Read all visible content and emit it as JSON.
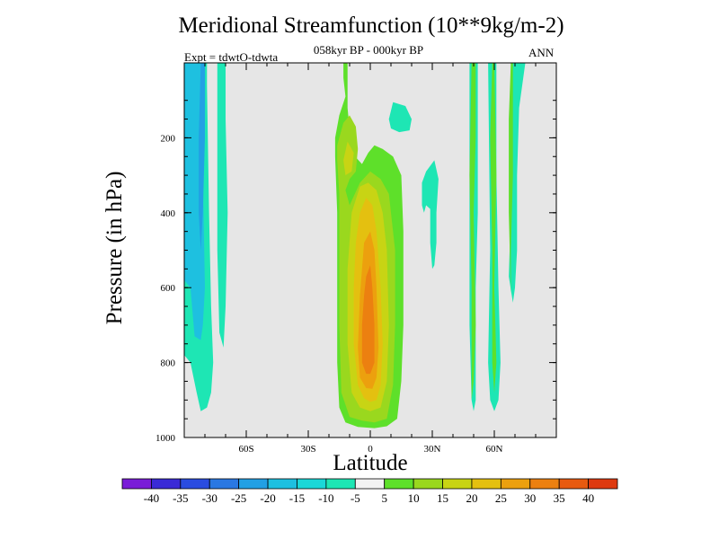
{
  "chart_data": {
    "type": "heatmap",
    "title": "Meridional Streamfunction (10**9kg/m-2)",
    "subtitle": "058kyr BP - 000kyr BP",
    "left_label": "Expt = tdwtO-tdwta",
    "right_label": "ANN",
    "xlabel": "Latitude",
    "ylabel": "Pressure (in hPa)",
    "xlim": [
      -90,
      90
    ],
    "ylim": [
      1000,
      0
    ],
    "x_ticks": [
      {
        "value": -60,
        "label": "60S"
      },
      {
        "value": -30,
        "label": "30S"
      },
      {
        "value": 0,
        "label": "0"
      },
      {
        "value": 30,
        "label": "30N"
      },
      {
        "value": 60,
        "label": "60N"
      }
    ],
    "y_ticks": [
      {
        "value": 200,
        "label": "200"
      },
      {
        "value": 400,
        "label": "400"
      },
      {
        "value": 600,
        "label": "600"
      },
      {
        "value": 800,
        "label": "800"
      },
      {
        "value": 1000,
        "label": "1000"
      }
    ],
    "background_color": "#e6e6e6",
    "colorbar": {
      "labels": [
        "-40",
        "-35",
        "-30",
        "-25",
        "-20",
        "-15",
        "-10",
        "-5",
        "5",
        "10",
        "15",
        "20",
        "25",
        "30",
        "35",
        "40"
      ],
      "colors": [
        "#7a1cd8",
        "#3a2ad6",
        "#2a4ce0",
        "#2a78e2",
        "#22a0e4",
        "#1ec0e0",
        "#1ad8d8",
        "#1ee6b4",
        "#f2f2f2",
        "#5ee02a",
        "#9ad81e",
        "#c8d414",
        "#e4c010",
        "#eca00e",
        "#ec8010",
        "#e85a10",
        "#de3a10"
      ]
    },
    "contours": [
      {
        "level": -5,
        "color": "#1ee6b4",
        "polygons": [
          [
            [
              -90,
              0
            ],
            [
              -79,
              0
            ],
            [
              -79,
              60
            ],
            [
              -78,
              400
            ],
            [
              -77,
              650
            ],
            [
              -76,
              800
            ],
            [
              -77,
              880
            ],
            [
              -79,
              920
            ],
            [
              -82,
              930
            ],
            [
              -84,
              880
            ],
            [
              -87,
              800
            ],
            [
              -90,
              780
            ]
          ],
          [
            [
              -74,
              0
            ],
            [
              -70,
              0
            ],
            [
              -70,
              150
            ],
            [
              -69,
              400
            ],
            [
              -70,
              650
            ],
            [
              -71,
              760
            ],
            [
              -73,
              720
            ],
            [
              -74,
              500
            ],
            [
              -74,
              200
            ]
          ],
          [
            [
              9,
              150
            ],
            [
              11,
              105
            ],
            [
              17,
              115
            ],
            [
              20,
              150
            ],
            [
              19,
              180
            ],
            [
              14,
              185
            ],
            [
              10,
              175
            ]
          ],
          [
            [
              25,
              320
            ],
            [
              27,
              290
            ],
            [
              31,
              260
            ],
            [
              33,
              310
            ],
            [
              32,
              400
            ],
            [
              32,
              480
            ],
            [
              31,
              540
            ],
            [
              30,
              550
            ],
            [
              29,
              480
            ],
            [
              29,
              390
            ],
            [
              27,
              380
            ],
            [
              26,
              400
            ],
            [
              25,
              380
            ]
          ],
          [
            [
              48,
              0
            ],
            [
              52,
              0
            ],
            [
              52,
              400
            ],
            [
              51,
              600
            ],
            [
              51,
              800
            ],
            [
              51,
              900
            ],
            [
              50,
              930
            ],
            [
              49,
              900
            ],
            [
              48,
              700
            ],
            [
              48,
              400
            ]
          ],
          [
            [
              57,
              0
            ],
            [
              61,
              0
            ],
            [
              61,
              300
            ],
            [
              62,
              600
            ],
            [
              63,
              800
            ],
            [
              62,
              900
            ],
            [
              60,
              930
            ],
            [
              58,
              900
            ],
            [
              57,
              800
            ],
            [
              58,
              500
            ]
          ],
          [
            [
              68,
              0
            ],
            [
              75,
              0
            ],
            [
              72,
              120
            ],
            [
              71,
              300
            ],
            [
              71,
              500
            ],
            [
              70,
              600
            ],
            [
              69,
              640
            ],
            [
              67,
              570
            ],
            [
              68,
              400
            ],
            [
              68,
              200
            ]
          ]
        ]
      },
      {
        "level": -10,
        "color": "#1ec0e0",
        "polygons": [
          [
            [
              -90,
              0
            ],
            [
              -81,
              0
            ],
            [
              -81,
              300
            ],
            [
              -80,
              600
            ],
            [
              -81,
              700
            ],
            [
              -82,
              740
            ],
            [
              -85,
              730
            ],
            [
              -87,
              600
            ],
            [
              -90,
              580
            ]
          ]
        ]
      },
      {
        "level": -15,
        "color": "#22a0e4",
        "polygons": [
          [
            [
              -82,
              0
            ],
            [
              -80,
              0
            ],
            [
              -80,
              200
            ],
            [
              -81,
              400
            ],
            [
              -82,
              500
            ],
            [
              -83,
              400
            ],
            [
              -83,
              200
            ]
          ]
        ]
      },
      {
        "level": 5,
        "color": "#5ee02a",
        "polygons": [
          [
            [
              -13,
              0
            ],
            [
              -11,
              0
            ],
            [
              -11,
              120
            ],
            [
              -9,
              240
            ],
            [
              -4,
              270
            ],
            [
              -1,
              240
            ],
            [
              2,
              220
            ],
            [
              6,
              230
            ],
            [
              11,
              250
            ],
            [
              15,
              300
            ],
            [
              16,
              450
            ],
            [
              16,
              700
            ],
            [
              15,
              850
            ],
            [
              13,
              950
            ],
            [
              8,
              970
            ],
            [
              2,
              975
            ],
            [
              -6,
              972
            ],
            [
              -12,
              960
            ],
            [
              -15,
              920
            ],
            [
              -16,
              800
            ],
            [
              -16,
              600
            ],
            [
              -16,
              400
            ],
            [
              -17,
              250
            ],
            [
              -17,
              200
            ],
            [
              -15,
              140
            ],
            [
              -12,
              90
            ],
            [
              -13,
              40
            ]
          ],
          [
            [
              49,
              0
            ],
            [
              51,
              0
            ],
            [
              51,
              200
            ],
            [
              50,
              400
            ],
            [
              51,
              700
            ],
            [
              50,
              850
            ],
            [
              49,
              900
            ],
            [
              49,
              600
            ],
            [
              48,
              300
            ]
          ],
          [
            [
              59,
              0
            ],
            [
              60,
              0
            ],
            [
              61,
              300
            ],
            [
              60,
              600
            ],
            [
              61,
              800
            ],
            [
              60,
              880
            ],
            [
              59,
              800
            ],
            [
              59,
              500
            ],
            [
              58,
              200
            ]
          ],
          [
            [
              68,
              0
            ],
            [
              69,
              0
            ],
            [
              69,
              300
            ],
            [
              68,
              500
            ],
            [
              68,
              620
            ],
            [
              67,
              400
            ],
            [
              67,
              150
            ]
          ]
        ]
      },
      {
        "level": 10,
        "color": "#9ad81e",
        "polygons": [
          [
            [
              -16,
              220
            ],
            [
              -13,
              160
            ],
            [
              -10,
              140
            ],
            [
              -7,
              170
            ],
            [
              -6,
              230
            ],
            [
              -7,
              290
            ],
            [
              -10,
              310
            ],
            [
              -12,
              340
            ],
            [
              -10,
              380
            ],
            [
              -5,
              320
            ],
            [
              0,
              290
            ],
            [
              5,
              310
            ],
            [
              9,
              350
            ],
            [
              12,
              500
            ],
            [
              12,
              700
            ],
            [
              11,
              860
            ],
            [
              8,
              950
            ],
            [
              2,
              960
            ],
            [
              -4,
              955
            ],
            [
              -10,
              945
            ],
            [
              -14,
              880
            ],
            [
              -15,
              700
            ],
            [
              -15,
              500
            ],
            [
              -15,
              350
            ],
            [
              -16,
              260
            ]
          ]
        ]
      },
      {
        "level": 15,
        "color": "#c8d414",
        "polygons": [
          [
            [
              -13,
              260
            ],
            [
              -11,
              210
            ],
            [
              -8,
              240
            ],
            [
              -9,
              290
            ],
            [
              -12,
              300
            ]
          ],
          [
            [
              -9,
              400
            ],
            [
              -5,
              330
            ],
            [
              -1,
              320
            ],
            [
              3,
              340
            ],
            [
              6,
              400
            ],
            [
              8,
              500
            ],
            [
              9,
              700
            ],
            [
              8,
              850
            ],
            [
              5,
              920
            ],
            [
              0,
              930
            ],
            [
              -5,
              920
            ],
            [
              -9,
              880
            ],
            [
              -11,
              750
            ],
            [
              -11,
              550
            ]
          ]
        ]
      },
      {
        "level": 20,
        "color": "#e4c010",
        "polygons": [
          [
            [
              -5,
              400
            ],
            [
              -2,
              360
            ],
            [
              1,
              380
            ],
            [
              3,
              450
            ],
            [
              5,
              600
            ],
            [
              6,
              750
            ],
            [
              5,
              860
            ],
            [
              3,
              900
            ],
            [
              0,
              905
            ],
            [
              -3,
              895
            ],
            [
              -6,
              860
            ],
            [
              -8,
              750
            ],
            [
              -8,
              600
            ],
            [
              -7,
              480
            ]
          ]
        ]
      },
      {
        "level": 25,
        "color": "#eca00e",
        "polygons": [
          [
            [
              -3,
              480
            ],
            [
              0,
              450
            ],
            [
              2,
              500
            ],
            [
              3,
              600
            ],
            [
              4,
              760
            ],
            [
              3,
              840
            ],
            [
              1,
              870
            ],
            [
              -2,
              868
            ],
            [
              -5,
              840
            ],
            [
              -6,
              760
            ],
            [
              -5,
              620
            ]
          ]
        ]
      },
      {
        "level": 30,
        "color": "#ec8010",
        "polygons": [
          [
            [
              -2,
              570
            ],
            [
              0,
              540
            ],
            [
              1,
              600
            ],
            [
              2,
              700
            ],
            [
              2,
              800
            ],
            [
              0,
              830
            ],
            [
              -2,
              830
            ],
            [
              -4,
              800
            ],
            [
              -4,
              700
            ],
            [
              -3,
              620
            ]
          ]
        ]
      }
    ]
  }
}
